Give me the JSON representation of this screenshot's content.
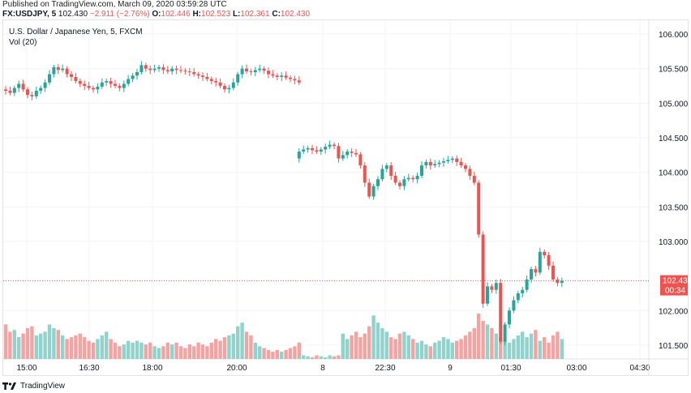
{
  "publish_line": "Published on TradingView.com, March 09, 2020 03:59:28 UTC",
  "info": {
    "symbol": "FX:USDJPY, 5",
    "last": "102.430",
    "change": "−2.911 (−2.76%)",
    "o_label": "O:",
    "o": "102.446",
    "h_label": "H:",
    "h": "102.523",
    "l_label": "L:",
    "l": "102.361",
    "c_label": "C:",
    "c": "102.430"
  },
  "legend": {
    "title": "U.S. Dollar / Japanese Yen, 5, FXCM",
    "volume": "Vol (20)"
  },
  "price_tag": {
    "price": "102.430",
    "countdown": "00:34"
  },
  "footer": {
    "brand": "TradingView"
  },
  "colors": {
    "up": "#26a69a",
    "down": "#ef5350",
    "up_vol": "#90d2cc",
    "down_vol": "#f4a3a1",
    "last_line": "#ef5350",
    "grid": "#f0f3fa",
    "axis_text": "#131722"
  },
  "chart_data": {
    "type": "candlestick",
    "title": "U.S. Dollar / Japanese Yen, 5, FXCM",
    "ylim": [
      101.3,
      106.2
    ],
    "y_ticks": [
      "106.000",
      "105.500",
      "105.000",
      "104.500",
      "104.000",
      "103.500",
      "103.000",
      "102.000",
      "101.500"
    ],
    "x_ticks": [
      "15:00",
      "16:30",
      "18:00",
      "20:00",
      "8",
      "22:30",
      "9",
      "01:30",
      "03:00",
      "04:30"
    ],
    "last_price": 102.43,
    "segments": [
      {
        "start": 0,
        "prices": [
          105.2,
          105.18,
          105.15,
          105.22,
          105.28,
          105.2,
          105.12,
          105.1,
          105.18,
          105.22,
          105.3,
          105.42,
          105.52,
          105.48,
          105.5,
          105.42,
          105.38,
          105.32,
          105.28,
          105.25,
          105.22,
          105.2,
          105.24,
          105.3,
          105.32,
          105.28,
          105.25,
          105.22,
          105.28,
          105.35,
          105.4,
          105.45,
          105.55,
          105.5,
          105.48,
          105.5,
          105.52,
          105.48,
          105.46,
          105.5,
          105.48,
          105.47,
          105.46,
          105.45,
          105.42,
          105.4,
          105.38,
          105.35,
          105.32,
          105.3,
          105.25,
          105.2,
          105.22,
          105.3,
          105.42,
          105.5,
          105.46,
          105.45,
          105.48,
          105.5,
          105.47,
          105.42,
          105.4,
          105.38,
          105.4,
          105.37,
          105.35,
          105.33,
          105.3
        ]
      },
      {
        "start": 67,
        "prices": [
          104.2,
          104.3,
          104.33,
          104.35,
          104.32,
          104.3,
          104.33,
          104.37,
          104.4,
          104.38,
          104.2,
          104.25,
          104.3,
          104.28,
          104.26,
          104.1,
          103.85,
          103.65,
          103.8,
          103.9,
          104.05,
          104.1,
          103.95,
          103.85,
          103.8,
          103.9,
          103.92,
          103.9,
          103.95,
          104.1,
          104.15,
          104.1,
          104.12,
          104.14,
          104.16,
          104.18,
          104.2,
          104.15,
          104.1,
          104.05,
          103.95,
          103.85,
          103.1,
          102.1,
          102.35,
          102.3,
          102.4,
          101.55,
          101.8,
          102.0,
          102.15,
          102.25,
          102.3,
          102.45,
          102.6,
          102.55,
          102.85,
          102.8,
          102.65,
          102.45,
          102.4,
          102.43
        ]
      }
    ],
    "volumes": [
      38,
      30,
      32,
      24,
      28,
      34,
      36,
      26,
      28,
      30,
      38,
      34,
      32,
      26,
      22,
      24,
      26,
      28,
      24,
      20,
      18,
      22,
      26,
      30,
      22,
      18,
      14,
      16,
      20,
      18,
      20,
      18,
      16,
      18,
      14,
      12,
      14,
      18,
      16,
      18,
      14,
      12,
      16,
      14,
      18,
      16,
      14,
      18,
      22,
      20,
      24,
      26,
      28,
      36,
      40,
      30,
      26,
      18,
      14,
      12,
      10,
      8,
      10,
      8,
      10,
      12,
      14,
      18,
      2,
      4,
      3,
      2,
      4,
      3,
      2,
      4,
      3,
      4,
      28,
      22,
      26,
      30,
      24,
      28,
      36,
      48,
      40,
      34,
      30,
      24,
      22,
      28,
      30,
      26,
      22,
      18,
      20,
      16,
      14,
      18,
      20,
      24,
      22,
      18,
      20,
      22,
      26,
      30,
      34,
      50,
      42,
      38,
      34,
      28,
      24,
      20,
      18,
      22,
      26,
      30,
      24,
      28,
      32,
      20,
      24,
      18,
      26,
      30,
      22,
      28,
      32,
      18,
      20,
      24,
      30,
      32,
      28,
      36,
      34,
      40,
      42,
      38,
      30,
      26
    ]
  }
}
